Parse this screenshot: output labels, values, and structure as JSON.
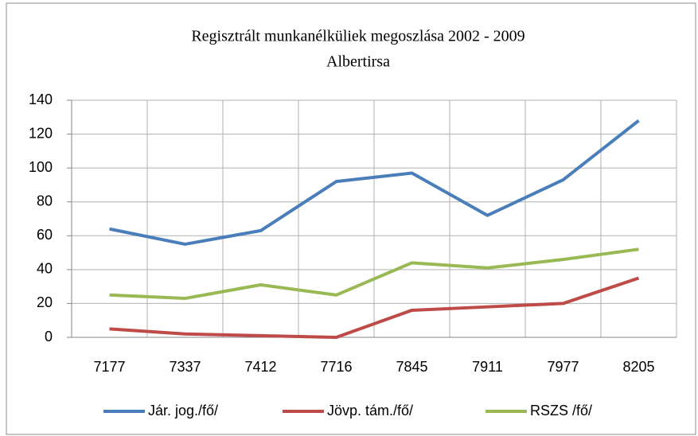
{
  "chart_data": {
    "type": "line",
    "title": "Regisztrált munkanélküliek megoszlása 2002 - 2009",
    "subtitle": "Albertirsa",
    "categories": [
      "7177",
      "7337",
      "7412",
      "7716",
      "7845",
      "7911",
      "7977",
      "8205"
    ],
    "series": [
      {
        "name": "Jár. jog./fő/",
        "color": "#4a7ebb",
        "values": [
          64,
          55,
          63,
          92,
          97,
          72,
          93,
          128
        ]
      },
      {
        "name": "Jövp. tám./fő/",
        "color": "#be4b48",
        "values": [
          5,
          2,
          1,
          0,
          16,
          18,
          20,
          35
        ]
      },
      {
        "name": "RSZS /fő/",
        "color": "#98b954",
        "values": [
          25,
          23,
          31,
          25,
          44,
          41,
          46,
          52
        ]
      }
    ],
    "ylim": [
      0,
      140
    ],
    "yticks": [
      0,
      20,
      40,
      60,
      80,
      100,
      120,
      140
    ],
    "grid": true,
    "legend": "bottom"
  }
}
